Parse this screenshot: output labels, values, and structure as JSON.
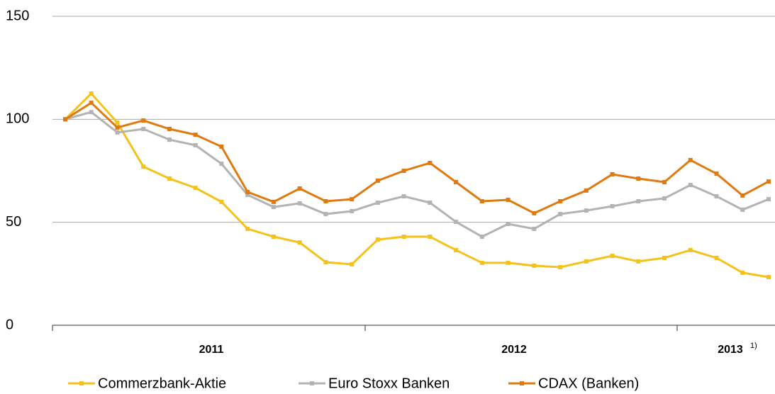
{
  "chart_data": {
    "type": "line",
    "categories": [
      null,
      null,
      null,
      null,
      null,
      null,
      null,
      null,
      null,
      null,
      null,
      null,
      null,
      null,
      null,
      null,
      null,
      null,
      null,
      null,
      null,
      null,
      null,
      null,
      null,
      null,
      null,
      null
    ],
    "x_group_labels": [
      "2011",
      "2012",
      "2013"
    ],
    "footnote": "1)",
    "series": [
      {
        "name": "Commerzbank-Aktie",
        "color": "#f5c21b",
        "values": [
          100,
          112.5,
          98.4,
          77,
          71.2,
          66.7,
          59.9,
          46.8,
          43,
          40.2,
          30.6,
          29.6,
          41.6,
          43,
          43,
          36.5,
          30.3,
          30.3,
          28.9,
          28.2,
          31,
          33.7,
          31,
          32.7,
          36.5,
          32.7,
          25.5,
          23.4
        ]
      },
      {
        "name": "Euro Stoxx Banken",
        "color": "#b3b3b3",
        "values": [
          100,
          103.5,
          93.6,
          95.3,
          90.1,
          87.4,
          78.4,
          63.3,
          57.4,
          59.2,
          54,
          55.4,
          59.5,
          62.6,
          59.5,
          50.2,
          43,
          49.2,
          46.8,
          54,
          55.7,
          57.8,
          60.2,
          61.6,
          68.1,
          62.6,
          56.1,
          61.2
        ]
      },
      {
        "name": "CDAX (Banken)",
        "color": "#e07a10",
        "values": [
          100,
          108,
          96,
          99.4,
          95.3,
          92.5,
          86.7,
          64.7,
          59.9,
          66.4,
          60.2,
          61.2,
          70.2,
          75,
          78.8,
          69.5,
          60.2,
          60.9,
          54.4,
          60.2,
          65.4,
          73.3,
          71.2,
          69.5,
          80.2,
          73.6,
          63,
          69.8
        ]
      }
    ],
    "ylim": [
      0,
      150
    ],
    "yticks": [
      0,
      50,
      100,
      150
    ],
    "grid": true
  }
}
